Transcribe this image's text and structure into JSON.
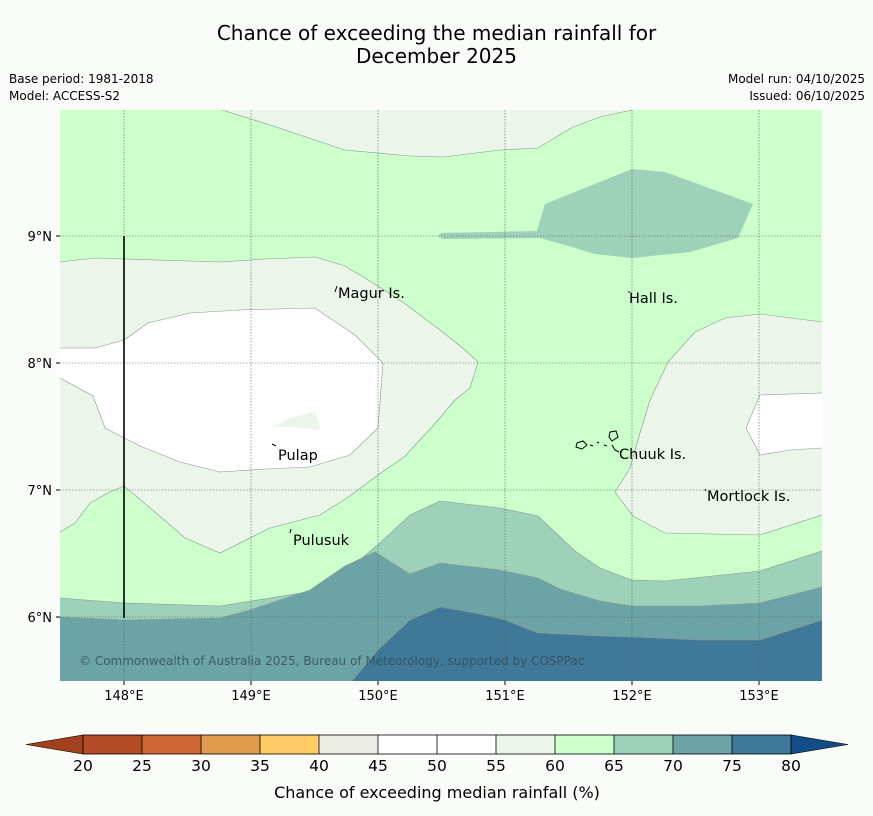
{
  "title": {
    "line1": "Chance of exceeding the median rainfall for",
    "line2": "December 2025"
  },
  "meta": {
    "base_period": "Base period: 1981-2018",
    "model": "Model: ACCESS-S2",
    "model_run": "Model run: 04/10/2025",
    "issued": "Issued: 06/10/2025"
  },
  "map": {
    "lon_ticks": [
      "148°E",
      "149°E",
      "150°E",
      "151°E",
      "152°E",
      "153°E"
    ],
    "lat_ticks": [
      "9°N",
      "8°N",
      "7°N",
      "6°N"
    ],
    "places": [
      {
        "name": "Magur Is.",
        "key": "magur"
      },
      {
        "name": "Hall Is.",
        "key": "hall"
      },
      {
        "name": "Pulap",
        "key": "pulap"
      },
      {
        "name": "Chuuk Is.",
        "key": "chuuk"
      },
      {
        "name": "Mortlock Is.",
        "key": "mortlock"
      },
      {
        "name": "Pulusuk",
        "key": "pulusuk"
      }
    ],
    "copyright": "© Commonwealth of Australia 2025, Bureau of Meteorology, supported by COSPPac"
  },
  "colorbar": {
    "label": "Chance of exceeding median rainfall (%)",
    "ticks": [
      "20",
      "25",
      "30",
      "35",
      "40",
      "45",
      "50",
      "55",
      "60",
      "65",
      "70",
      "75",
      "80"
    ],
    "colors": {
      "below_20": "#a2401f",
      "20_25": "#b24b26",
      "25_30": "#ce6733",
      "30_35": "#e29a4e",
      "35_40": "#fecb67",
      "40_45": "#ebebe6",
      "45_50": "#ffffff",
      "50_55": "#ffffff",
      "55_60": "#ebf5ea",
      "60_65": "#ccffcc",
      "65_70": "#9dd1ba",
      "70_75": "#6ca3a7",
      "75_80": "#3f7899",
      "above_80": "#124d87"
    }
  }
}
